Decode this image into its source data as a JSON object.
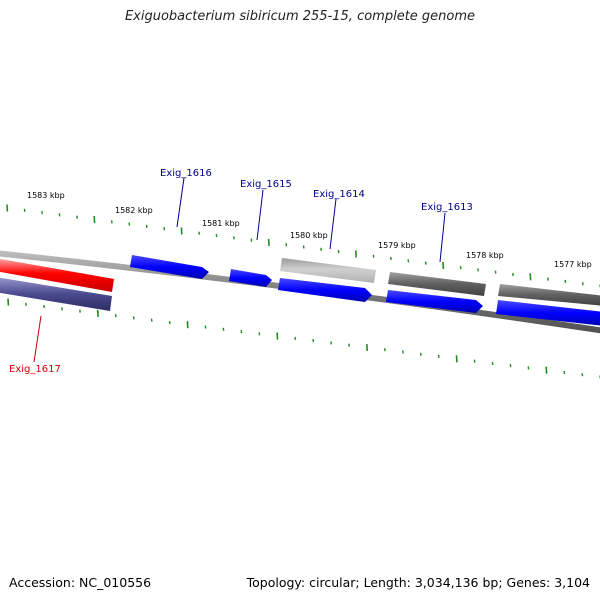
{
  "title": "Exiguobacterium sibiricum 255-15, complete genome",
  "footer": {
    "accession": "Accession: NC_010556",
    "topology": "Topology: circular; Length: 3,034,136 bp; Genes: 3,104"
  },
  "colors": {
    "selected_gene": "#ff0000",
    "gene_label": "#00008b",
    "selected_label": "#cc0000",
    "forward_gene": "#0000ff",
    "reverse_gene": "#4a4a8e",
    "grey_gene": "#666666",
    "light_grey_gene": "#c0c0c0",
    "tick": "#228b22",
    "backbone": "#888888"
  },
  "kbp_labels": [
    "1583 kbp",
    "1582 kbp",
    "1581 kbp",
    "1580 kbp",
    "1579 kbp",
    "1578 kbp",
    "1577 kbp"
  ],
  "gene_labels": [
    {
      "name": "Exig_1616",
      "selected": false
    },
    {
      "name": "Exig_1615",
      "selected": false
    },
    {
      "name": "Exig_1614",
      "selected": false
    },
    {
      "name": "Exig_1613",
      "selected": false
    },
    {
      "name": "Exig_1617",
      "selected": true
    }
  ]
}
